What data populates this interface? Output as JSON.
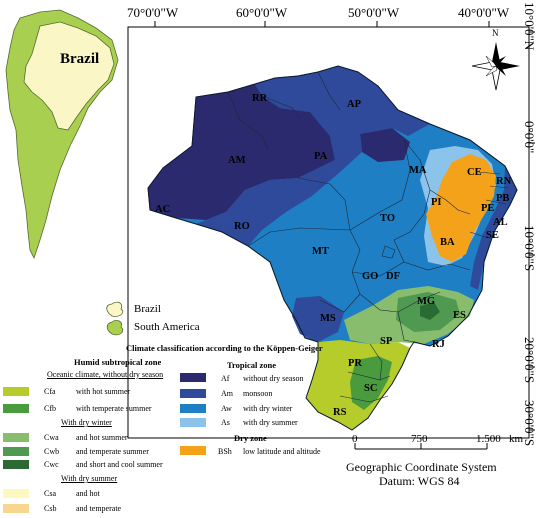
{
  "colors": {
    "Cfa": "#b5cc2b",
    "Cfb": "#4a9a3e",
    "Cwa": "#88bd6e",
    "Cwb": "#4f9a50",
    "Cwc": "#2b6b33",
    "Csa": "#fdf7c0",
    "Csb": "#f8d690",
    "Af": "#2c2a6e",
    "Am": "#2f4a9a",
    "Aw": "#1f7fc4",
    "As": "#8cc3ea",
    "BSh": "#f5a21b",
    "Brazil_inset": "#fbf6c6",
    "SouthAmerica_inset": "#a8cf4f"
  },
  "axes": {
    "top": [
      "70°0'0\"W",
      "60°0'0\"W",
      "50°0'0\"W",
      "40°0'0\"W"
    ],
    "right": [
      "10°0'0\"N",
      "0°0'0\"",
      "10°0'0\"S",
      "20°0'0\"S",
      "30°0'0\"S"
    ]
  },
  "states": [
    "RR",
    "AP",
    "AM",
    "PA",
    "MA",
    "CE",
    "RN",
    "PB",
    "PE",
    "AL",
    "SE",
    "PI",
    "BA",
    "AC",
    "RO",
    "TO",
    "MT",
    "GO",
    "DF",
    "MG",
    "ES",
    "MS",
    "SP",
    "RJ",
    "PR",
    "SC",
    "RS"
  ],
  "inset": {
    "country_label": "Brazil"
  },
  "inset_legend": {
    "brazil": "Brazil",
    "south_america": "South America"
  },
  "legend": {
    "title": "Climate classification according to the Köppen-Geiger",
    "humid_title": "Humid subtropical zone",
    "oceanic_subtitle": "Oceanic climate, without dry season",
    "dry_winter_subtitle": "With dry winter",
    "dry_summer_subtitle": "With dry summer",
    "tropical_title": "Tropical zone",
    "dry_zone_title": "Dry zone",
    "items": {
      "Cfa": "with hot summer",
      "Cfb": "with temperate summer",
      "Cwa": "and hot summer",
      "Cwb": "and temperate summer",
      "Cwc": "and short and cool summer",
      "Csa": "and hot",
      "Csb": "and temperate",
      "Af": "without dry season",
      "Am": "monsoon",
      "Aw": "with dry winter",
      "As": "with dry summer",
      "BSh": "low latitude and altitude"
    }
  },
  "scale": {
    "labels": [
      "0",
      "750",
      "1.500"
    ],
    "unit": "km"
  },
  "footer": {
    "system": "Geographic Coordinate System",
    "datum": "Datum: WGS 84"
  },
  "north": "N"
}
